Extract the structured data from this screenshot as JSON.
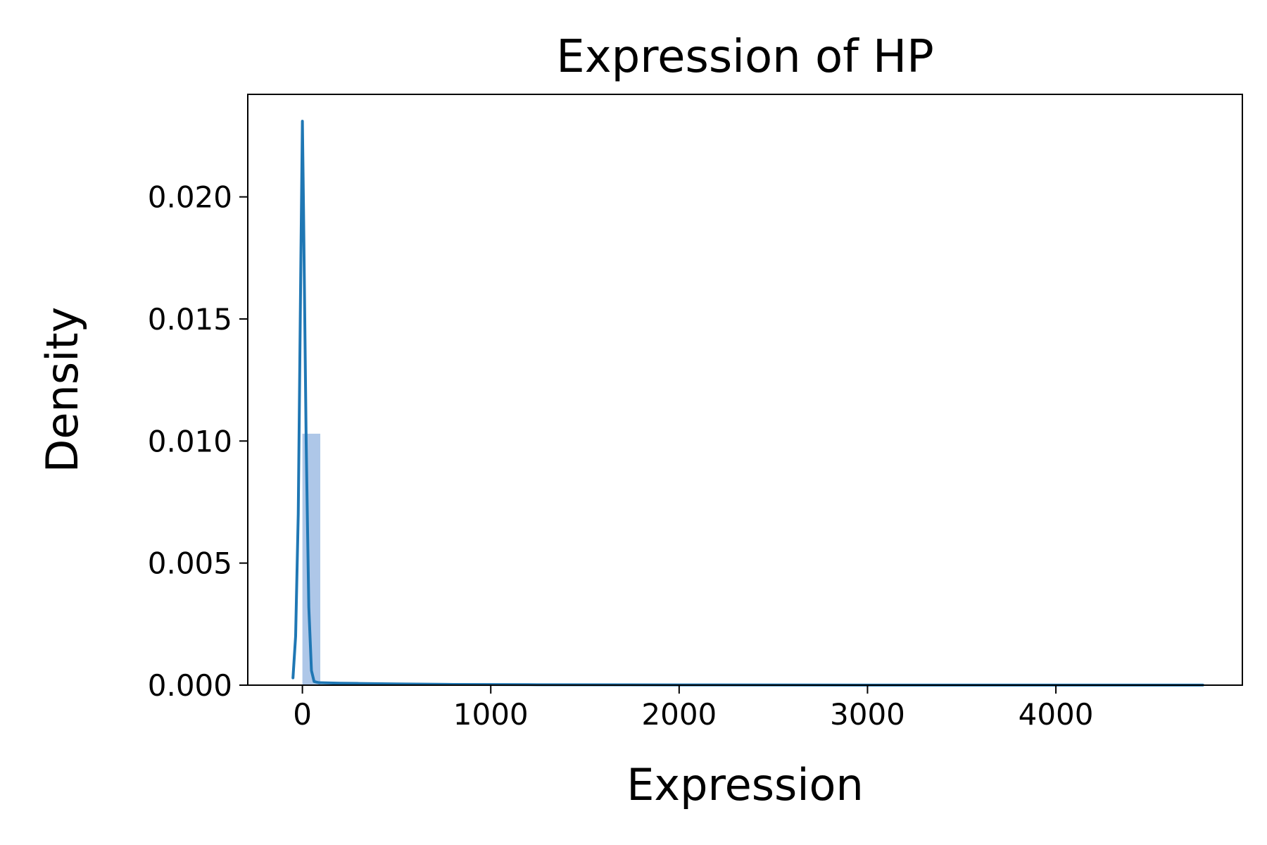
{
  "chart_data": {
    "type": "histogram",
    "title": "Expression of HP",
    "xlabel": "Expression",
    "ylabel": "Density",
    "xlim": [
      -290,
      4990
    ],
    "ylim": [
      0,
      0.0242
    ],
    "x_ticks": [
      0,
      1000,
      2000,
      3000,
      4000
    ],
    "x_tick_labels": [
      "0",
      "1000",
      "2000",
      "3000",
      "4000"
    ],
    "y_ticks": [
      0,
      0.005,
      0.01,
      0.015,
      0.02
    ],
    "y_tick_labels": [
      "0.000",
      "0.005",
      "0.010",
      "0.015",
      "0.020"
    ],
    "grid": false,
    "legend": "none",
    "colors": {
      "line": "#1f77b4",
      "bar": "#aec7e8"
    },
    "histogram_bars": [
      {
        "x0": 0,
        "x1": 95,
        "density": 0.0103
      }
    ],
    "kde_line": {
      "x": [
        -50,
        -36,
        -22,
        -8,
        0,
        6,
        20,
        34,
        48,
        62,
        76,
        90,
        200,
        300,
        500,
        800,
        1200,
        2000,
        3000,
        4000,
        4780
      ],
      "y": [
        0.0003,
        0.002,
        0.007,
        0.0175,
        0.0231,
        0.0195,
        0.01,
        0.0032,
        0.0006,
        0.00015,
        0.00012,
        0.0001,
        8e-05,
        7e-05,
        5e-05,
        3e-05,
        2e-05,
        1e-05,
        5e-06,
        3e-06,
        2e-06
      ]
    }
  }
}
